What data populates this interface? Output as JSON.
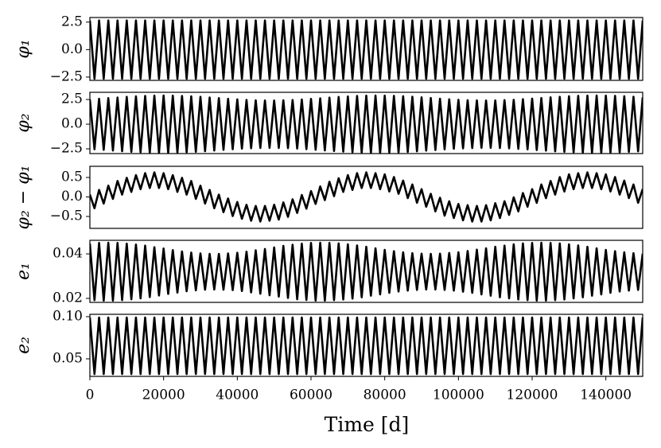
{
  "chart_data": {
    "type": "line",
    "xlabel": "Time [d]",
    "xlim": [
      0,
      150000
    ],
    "xticks": [
      0,
      20000,
      40000,
      60000,
      80000,
      100000,
      120000,
      140000
    ],
    "x": [
      0,
      1250,
      2500,
      3750,
      5000,
      6250,
      7500,
      8750,
      10000,
      11250,
      12500,
      13750,
      15000,
      16250,
      17500,
      18750,
      20000,
      21250,
      22500,
      23750,
      25000,
      26250,
      27500,
      28750,
      30000,
      31250,
      32500,
      33750,
      35000,
      36250,
      37500,
      38750,
      40000,
      41250,
      42500,
      43750,
      45000,
      46250,
      47500,
      48750,
      50000,
      51250,
      52500,
      53750,
      55000,
      56250,
      57500,
      58750,
      60000,
      61250,
      62500,
      63750,
      65000,
      66250,
      67500,
      68750,
      70000,
      71250,
      72500,
      73750,
      75000,
      76250,
      77500,
      78750,
      80000,
      81250,
      82500,
      83750,
      85000,
      86250,
      87500,
      88750,
      90000,
      91250,
      92500,
      93750,
      95000,
      96250,
      97500,
      98750,
      100000,
      101250,
      102500,
      103750,
      105000,
      106250,
      107500,
      108750,
      110000,
      111250,
      112500,
      113750,
      115000,
      116250,
      117500,
      118750,
      120000,
      121250,
      122500,
      123750,
      125000,
      126250,
      127500,
      128750,
      130000,
      131250,
      132500,
      133750,
      135000,
      136250,
      137500,
      138750,
      140000,
      141250,
      142500,
      143750,
      145000,
      146250,
      147500,
      148750,
      150000
    ],
    "panels": [
      {
        "ylabel": "φ₁",
        "color": "#000000",
        "ylim": [
          -2.8,
          2.92
        ],
        "yticks": [
          {
            "value": -2.5,
            "label": "−2.5"
          },
          {
            "value": 0,
            "label": "0.0"
          },
          2.5
        ],
        "values": [
          2.65,
          -2.65,
          2.65,
          -2.65,
          2.65,
          -2.65,
          2.65,
          -2.65,
          2.65,
          -2.65,
          2.65,
          -2.65,
          2.65,
          -2.65,
          2.65,
          -2.65,
          2.65,
          -2.65,
          2.65,
          -2.65,
          2.65,
          -2.65,
          2.65,
          -2.65,
          2.65,
          -2.65,
          2.65,
          -2.65,
          2.65,
          -2.65,
          2.65,
          -2.65,
          2.65,
          -2.65,
          2.65,
          -2.65,
          2.65,
          -2.65,
          2.65,
          -2.65,
          2.65,
          -2.65,
          2.65,
          -2.65,
          2.65,
          -2.65,
          2.65,
          -2.65,
          2.65,
          -2.65,
          2.65,
          -2.65,
          2.65,
          -2.65,
          2.65,
          -2.65,
          2.65,
          -2.65,
          2.65,
          -2.65,
          2.65,
          -2.65,
          2.65,
          -2.65,
          2.65,
          -2.65,
          2.65,
          -2.65,
          2.65,
          -2.65,
          2.65,
          -2.65,
          2.65,
          -2.65,
          2.65,
          -2.65,
          2.65,
          -2.65,
          2.65,
          -2.65,
          2.65,
          -2.65,
          2.65,
          -2.65,
          2.65,
          -2.65,
          2.65,
          -2.65,
          2.65,
          -2.65,
          2.65,
          -2.65,
          2.65,
          -2.65,
          2.65,
          -2.65,
          2.65,
          -2.65,
          2.65,
          -2.65,
          2.65,
          -2.65,
          2.65,
          -2.65,
          2.65,
          -2.65,
          2.65,
          -2.65,
          2.65,
          -2.65,
          2.65,
          -2.65,
          2.65,
          -2.65,
          2.65,
          -2.65,
          2.65,
          -2.65,
          2.65,
          -2.65,
          2.65
        ]
      },
      {
        "ylabel": "φ₂",
        "color": "#000000",
        "ylim": [
          -2.98,
          3.23
        ],
        "yticks": [
          {
            "value": -2.5,
            "label": "−2.5"
          },
          {
            "value": 0,
            "label": "0.0"
          },
          2.5
        ],
        "values": [
          2.51,
          -2.54,
          2.57,
          -2.6,
          2.64,
          -2.67,
          2.7,
          -2.74,
          2.77,
          -2.8,
          2.82,
          -2.84,
          2.86,
          -2.88,
          2.89,
          -2.9,
          2.9,
          -2.9,
          2.89,
          -2.88,
          2.86,
          -2.84,
          2.82,
          -2.8,
          2.77,
          -2.74,
          2.7,
          -2.67,
          2.64,
          -2.6,
          2.57,
          -2.54,
          2.51,
          -2.48,
          2.46,
          -2.44,
          2.42,
          -2.41,
          2.4,
          -2.4,
          2.4,
          -2.41,
          2.42,
          -2.43,
          2.45,
          -2.47,
          2.5,
          -2.53,
          2.56,
          -2.59,
          2.62,
          -2.66,
          2.69,
          -2.72,
          2.76,
          -2.78,
          2.81,
          -2.84,
          2.86,
          -2.87,
          2.89,
          -2.9,
          2.9,
          -2.9,
          2.89,
          -2.88,
          2.87,
          -2.85,
          2.83,
          -2.81,
          2.78,
          -2.75,
          2.72,
          -2.68,
          2.65,
          -2.62,
          2.58,
          -2.55,
          2.52,
          -2.49,
          2.47,
          -2.45,
          2.43,
          -2.42,
          2.41,
          -2.4,
          2.4,
          -2.4,
          2.41,
          -2.42,
          2.44,
          -2.45,
          2.47,
          -2.5,
          2.53,
          -2.55,
          2.59,
          -2.62,
          2.65,
          -2.68,
          2.72,
          -2.75,
          2.77,
          -2.8,
          2.83,
          -2.85,
          2.87,
          -2.88,
          2.89,
          -2.9,
          2.9,
          -2.9,
          2.89,
          -2.88,
          2.87,
          -2.85,
          2.83,
          -2.8,
          2.78,
          -2.75,
          2.72
        ]
      },
      {
        "ylabel": "φ₂ − φ₁",
        "color": "#000000",
        "ylim": [
          -0.806,
          0.786
        ],
        "yticks": [
          {
            "value": -0.5,
            "label": "−0.5"
          },
          {
            "value": 0,
            "label": "0.0"
          },
          0.5
        ],
        "values": [
          0.06,
          -0.29,
          0.18,
          -0.17,
          0.29,
          -0.05,
          0.41,
          0.06,
          0.49,
          0.13,
          0.56,
          0.2,
          0.61,
          0.23,
          0.63,
          0.23,
          0.61,
          0.2,
          0.56,
          0.13,
          0.49,
          0.06,
          0.41,
          -0.05,
          0.29,
          -0.17,
          0.18,
          -0.29,
          0.06,
          -0.39,
          -0.04,
          -0.49,
          -0.13,
          -0.56,
          -0.2,
          -0.61,
          -0.23,
          -0.63,
          -0.23,
          -0.61,
          -0.2,
          -0.58,
          -0.14,
          -0.51,
          -0.06,
          -0.41,
          0.05,
          -0.3,
          0.15,
          -0.18,
          0.27,
          -0.08,
          0.39,
          0.02,
          0.48,
          0.13,
          0.56,
          0.18,
          0.61,
          0.23,
          0.63,
          0.23,
          0.61,
          0.2,
          0.58,
          0.14,
          0.51,
          0.08,
          0.42,
          -0.03,
          0.32,
          -0.15,
          0.2,
          -0.25,
          0.08,
          -0.37,
          -0.02,
          -0.48,
          -0.11,
          -0.54,
          -0.18,
          -0.6,
          -0.21,
          -0.63,
          -0.23,
          -0.63,
          -0.21,
          -0.6,
          -0.16,
          -0.54,
          -0.11,
          -0.46,
          -0.01,
          -0.37,
          0.1,
          -0.25,
          0.2,
          -0.15,
          0.32,
          -0.03,
          0.41,
          0.06,
          0.51,
          0.14,
          0.58,
          0.2,
          0.61,
          0.23,
          0.63,
          0.23,
          0.61,
          0.2,
          0.58,
          0.14,
          0.51,
          0.06,
          0.42,
          -0.03,
          0.32,
          -0.15,
          0.2
        ]
      },
      {
        "ylabel": "e₁",
        "color": "#000000",
        "ylim": [
          0.0182,
          0.0461
        ],
        "yticks": [
          0.02,
          0.04
        ],
        "values": [
          0.0446,
          0.0192,
          0.0449,
          0.019,
          0.045,
          0.019,
          0.0449,
          0.0192,
          0.0446,
          0.0196,
          0.0442,
          0.02,
          0.0437,
          0.0206,
          0.043,
          0.0213,
          0.0424,
          0.022,
          0.0417,
          0.0226,
          0.0411,
          0.0232,
          0.0406,
          0.0236,
          0.0402,
          0.0239,
          0.04,
          0.024,
          0.04,
          0.0239,
          0.0402,
          0.0237,
          0.0405,
          0.0233,
          0.041,
          0.0227,
          0.0416,
          0.0221,
          0.0422,
          0.0214,
          0.0429,
          0.0208,
          0.0436,
          0.0202,
          0.0441,
          0.0196,
          0.0446,
          0.0193,
          0.0449,
          0.019,
          0.045,
          0.019,
          0.0449,
          0.0192,
          0.0447,
          0.0195,
          0.0443,
          0.0199,
          0.0438,
          0.0205,
          0.0432,
          0.0212,
          0.0425,
          0.0218,
          0.0418,
          0.0225,
          0.0412,
          0.0231,
          0.0407,
          0.0235,
          0.0403,
          0.0238,
          0.0401,
          0.024,
          0.04,
          0.024,
          0.0401,
          0.0238,
          0.0404,
          0.0235,
          0.0407,
          0.023,
          0.0413,
          0.0225,
          0.0419,
          0.0218,
          0.0425,
          0.0212,
          0.0432,
          0.0205,
          0.0437,
          0.02,
          0.0443,
          0.0195,
          0.0447,
          0.0192,
          0.0449,
          0.019,
          0.045,
          0.019,
          0.0449,
          0.0192,
          0.0447,
          0.0195,
          0.0443,
          0.02,
          0.0438,
          0.0205,
          0.0432,
          0.0212,
          0.0425,
          0.0218,
          0.0418,
          0.0225,
          0.0412,
          0.0231,
          0.0407,
          0.0235,
          0.0403,
          0.0238,
          0.0401
        ]
      },
      {
        "ylabel": "e₂",
        "color": "#000000",
        "ylim": [
          0.0292,
          0.1028
        ],
        "yticks": [
          0.05,
          {
            "value": 0.1,
            "label": "0.10"
          }
        ],
        "values": [
          0.099,
          0.032,
          0.099,
          0.032,
          0.099,
          0.032,
          0.099,
          0.032,
          0.099,
          0.032,
          0.099,
          0.032,
          0.099,
          0.032,
          0.099,
          0.032,
          0.099,
          0.032,
          0.099,
          0.032,
          0.099,
          0.032,
          0.099,
          0.032,
          0.099,
          0.032,
          0.099,
          0.032,
          0.099,
          0.032,
          0.099,
          0.032,
          0.099,
          0.032,
          0.099,
          0.032,
          0.099,
          0.032,
          0.099,
          0.032,
          0.099,
          0.032,
          0.099,
          0.032,
          0.099,
          0.032,
          0.099,
          0.032,
          0.099,
          0.032,
          0.099,
          0.032,
          0.099,
          0.032,
          0.099,
          0.032,
          0.099,
          0.032,
          0.099,
          0.032,
          0.099,
          0.032,
          0.099,
          0.032,
          0.099,
          0.032,
          0.099,
          0.032,
          0.099,
          0.032,
          0.099,
          0.032,
          0.099,
          0.032,
          0.099,
          0.032,
          0.099,
          0.032,
          0.099,
          0.032,
          0.099,
          0.032,
          0.099,
          0.032,
          0.099,
          0.032,
          0.099,
          0.032,
          0.099,
          0.032,
          0.099,
          0.032,
          0.099,
          0.032,
          0.099,
          0.032,
          0.099,
          0.032,
          0.099,
          0.032,
          0.099,
          0.032,
          0.099,
          0.032,
          0.099,
          0.032,
          0.099,
          0.032,
          0.099,
          0.032,
          0.099,
          0.032,
          0.099,
          0.032,
          0.099,
          0.032,
          0.099,
          0.032,
          0.099,
          0.032,
          0.099
        ]
      }
    ]
  }
}
